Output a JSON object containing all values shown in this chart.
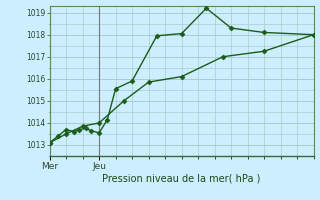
{
  "title": "",
  "xlabel": "Pression niveau de la mer( hPa )",
  "bg_color": "#cceeff",
  "grid_color": "#aacccc",
  "line_color": "#1a5c1a",
  "ylim": [
    1012.5,
    1019.3
  ],
  "yticks": [
    1013,
    1014,
    1015,
    1016,
    1017,
    1018,
    1019
  ],
  "xlim": [
    0,
    16
  ],
  "xtick_positions": [
    0,
    3
  ],
  "xtick_labels": [
    "Mer",
    "Jeu"
  ],
  "vline_positions": [
    0,
    3
  ],
  "line1_x": [
    0,
    0.5,
    1.0,
    1.5,
    1.8,
    2.2,
    2.5,
    3.0,
    3.5,
    4.0,
    5.0,
    6.5,
    8.0,
    9.5,
    11.0,
    13.0,
    16.0
  ],
  "line1_y": [
    1013.1,
    1013.4,
    1013.7,
    1013.6,
    1013.7,
    1013.75,
    1013.65,
    1013.55,
    1014.15,
    1015.55,
    1015.9,
    1017.95,
    1018.05,
    1019.2,
    1018.3,
    1018.1,
    1018.0
  ],
  "line2_x": [
    0,
    1.0,
    2.0,
    3.0,
    4.5,
    6.0,
    8.0,
    10.5,
    13.0,
    16.0
  ],
  "line2_y": [
    1013.1,
    1013.5,
    1013.85,
    1014.0,
    1015.0,
    1015.85,
    1016.1,
    1017.0,
    1017.25,
    1018.0
  ],
  "markersize": 2.5,
  "linewidth": 1.0
}
